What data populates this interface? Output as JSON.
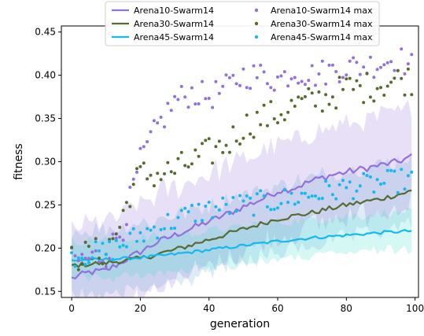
{
  "chart_data": {
    "type": "line",
    "xlabel": "generation",
    "ylabel": "fitness",
    "xlim": [
      -3,
      101
    ],
    "ylim": [
      0.143,
      0.457
    ],
    "xticks": [
      0,
      20,
      40,
      60,
      80,
      100
    ],
    "yticks": [
      0.15,
      0.2,
      0.25,
      0.3,
      0.35,
      0.4,
      0.45
    ],
    "grid": false,
    "legend_position": "top-center",
    "series": [
      {
        "name": "Arena10-Swarm14",
        "kind": "mean",
        "color": "#9370db",
        "band_color": "#9370db",
        "band_opacity": 0.22,
        "band_width": 0.055,
        "anchors": [
          [
            0,
            0.165
          ],
          [
            5,
            0.172
          ],
          [
            10,
            0.174
          ],
          [
            15,
            0.185
          ],
          [
            20,
            0.196
          ],
          [
            25,
            0.207
          ],
          [
            30,
            0.215
          ],
          [
            35,
            0.223
          ],
          [
            40,
            0.231
          ],
          [
            45,
            0.239
          ],
          [
            50,
            0.248
          ],
          [
            55,
            0.256
          ],
          [
            60,
            0.266
          ],
          [
            65,
            0.27
          ],
          [
            70,
            0.278
          ],
          [
            75,
            0.284
          ],
          [
            80,
            0.288
          ],
          [
            85,
            0.292
          ],
          [
            90,
            0.296
          ],
          [
            95,
            0.3
          ],
          [
            99,
            0.306
          ]
        ],
        "noise": 0.004
      },
      {
        "name": "Arena30-Swarm14",
        "kind": "mean",
        "color": "#556b2f",
        "band_color": "#2f8bbf",
        "band_opacity": 0.16,
        "band_width": 0.04,
        "anchors": [
          [
            0,
            0.18
          ],
          [
            10,
            0.183
          ],
          [
            20,
            0.188
          ],
          [
            30,
            0.198
          ],
          [
            40,
            0.21
          ],
          [
            50,
            0.222
          ],
          [
            60,
            0.234
          ],
          [
            70,
            0.241
          ],
          [
            80,
            0.25
          ],
          [
            90,
            0.257
          ],
          [
            99,
            0.266
          ]
        ],
        "noise": 0.003
      },
      {
        "name": "Arena45-Swarm14",
        "kind": "mean",
        "color": "#14b9ef",
        "band_color": "#40e0d0",
        "band_opacity": 0.22,
        "band_width": 0.022,
        "anchors": [
          [
            0,
            0.186
          ],
          [
            10,
            0.187
          ],
          [
            20,
            0.189
          ],
          [
            30,
            0.193
          ],
          [
            40,
            0.198
          ],
          [
            50,
            0.203
          ],
          [
            60,
            0.208
          ],
          [
            70,
            0.212
          ],
          [
            80,
            0.215
          ],
          [
            90,
            0.218
          ],
          [
            99,
            0.22
          ]
        ],
        "noise": 0.0018
      },
      {
        "name": "Arena10-Swarm14 max",
        "kind": "max",
        "color": "#9370db",
        "anchors": [
          [
            0,
            0.185
          ],
          [
            5,
            0.188
          ],
          [
            10,
            0.193
          ],
          [
            12,
            0.205
          ],
          [
            15,
            0.225
          ],
          [
            18,
            0.27
          ],
          [
            20,
            0.3
          ],
          [
            25,
            0.34
          ],
          [
            30,
            0.37
          ],
          [
            35,
            0.38
          ],
          [
            40,
            0.375
          ],
          [
            45,
            0.385
          ],
          [
            50,
            0.4
          ],
          [
            55,
            0.4
          ],
          [
            60,
            0.395
          ],
          [
            65,
            0.405
          ],
          [
            70,
            0.4
          ],
          [
            75,
            0.405
          ],
          [
            80,
            0.41
          ],
          [
            85,
            0.41
          ],
          [
            90,
            0.415
          ],
          [
            95,
            0.42
          ],
          [
            99,
            0.41
          ]
        ],
        "noise": 0.016
      },
      {
        "name": "Arena30-Swarm14 max",
        "kind": "max",
        "color": "#556b2f",
        "anchors": [
          [
            0,
            0.19
          ],
          [
            5,
            0.192
          ],
          [
            10,
            0.198
          ],
          [
            14,
            0.225
          ],
          [
            17,
            0.265
          ],
          [
            20,
            0.285
          ],
          [
            25,
            0.285
          ],
          [
            30,
            0.29
          ],
          [
            35,
            0.3
          ],
          [
            40,
            0.31
          ],
          [
            45,
            0.32
          ],
          [
            50,
            0.34
          ],
          [
            55,
            0.35
          ],
          [
            60,
            0.355
          ],
          [
            65,
            0.365
          ],
          [
            70,
            0.37
          ],
          [
            75,
            0.375
          ],
          [
            80,
            0.385
          ],
          [
            85,
            0.385
          ],
          [
            90,
            0.39
          ],
          [
            95,
            0.395
          ],
          [
            99,
            0.395
          ]
        ],
        "noise": 0.018
      },
      {
        "name": "Arena45-Swarm14 max",
        "kind": "max",
        "color": "#14b9ef",
        "anchors": [
          [
            0,
            0.192
          ],
          [
            10,
            0.195
          ],
          [
            15,
            0.205
          ],
          [
            20,
            0.215
          ],
          [
            25,
            0.225
          ],
          [
            30,
            0.232
          ],
          [
            35,
            0.24
          ],
          [
            40,
            0.245
          ],
          [
            50,
            0.25
          ],
          [
            60,
            0.255
          ],
          [
            70,
            0.262
          ],
          [
            80,
            0.27
          ],
          [
            90,
            0.275
          ],
          [
            99,
            0.28
          ]
        ],
        "noise": 0.014
      }
    ]
  }
}
